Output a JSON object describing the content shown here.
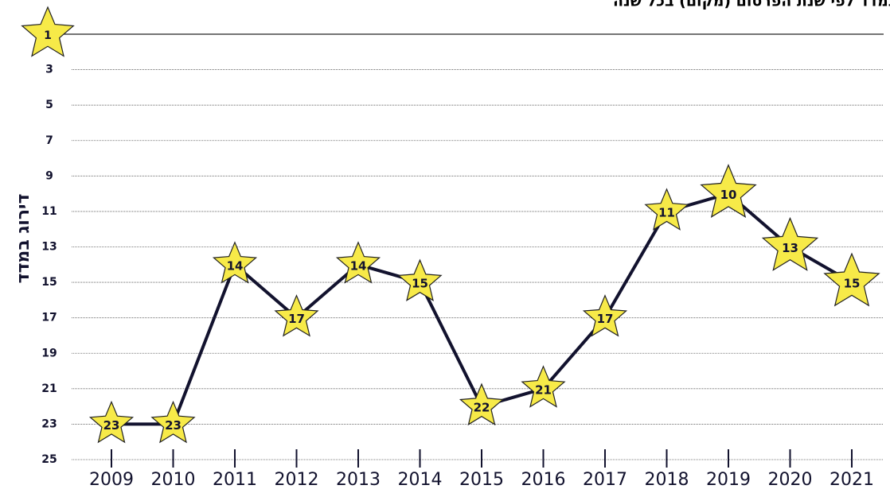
{
  "chart_data": {
    "type": "line",
    "title": "דירוג ישראל במדד לפי שנת הפרסום (מקום) בכל שנה",
    "y_label": "דירוג במדד",
    "categories": [
      "2009",
      "2010",
      "2011",
      "2012",
      "2013",
      "2014",
      "2015",
      "2016",
      "2017",
      "2018",
      "2019",
      "2020",
      "2021"
    ],
    "series": [
      {
        "name": "דירוג",
        "color": "#12122e",
        "values": [
          23,
          23,
          14,
          17,
          14,
          15,
          22,
          21,
          17,
          11,
          10,
          13,
          15
        ]
      }
    ],
    "marker_color": "#f7ea48",
    "ylim": [
      1,
      25
    ],
    "y_inverted": true,
    "yticks": [
      1,
      3,
      5,
      7,
      9,
      11,
      13,
      15,
      17,
      19,
      21,
      23,
      25
    ],
    "grid": true
  }
}
